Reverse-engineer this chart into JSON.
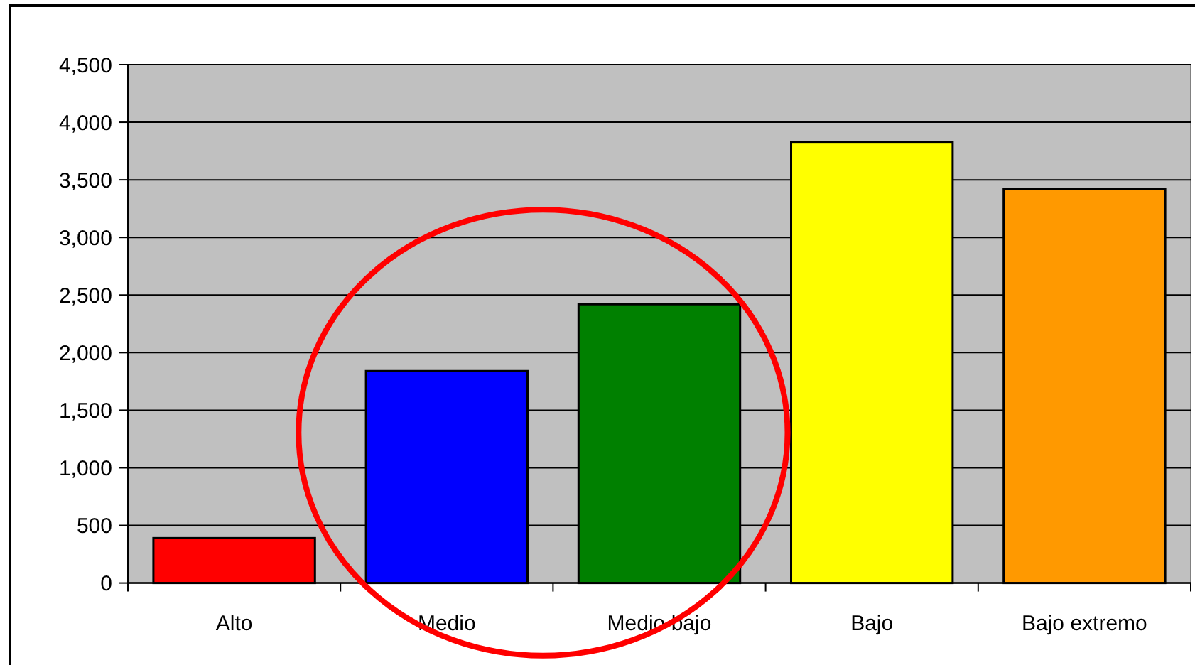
{
  "chart_data": {
    "type": "bar",
    "categories": [
      "Alto",
      "Medio",
      "Medio bajo",
      "Bajo",
      "Bajo extremo"
    ],
    "values": [
      390,
      1840,
      2420,
      3830,
      3420
    ],
    "colors": [
      "#ff0000",
      "#0000ff",
      "#008000",
      "#ffff00",
      "#ff9900"
    ],
    "ylim": [
      0,
      4500
    ],
    "yticks": [
      0,
      500,
      {
        "value": 1000,
        "label": "1,000"
      },
      {
        "value": 1500,
        "label": "1,500"
      },
      {
        "value": 2000,
        "label": "2,000"
      },
      {
        "value": 2500,
        "label": "2,500"
      },
      {
        "value": 3000,
        "label": "3,000"
      },
      {
        "value": 3500,
        "label": "3,500"
      },
      {
        "value": 4000,
        "label": "4,000"
      },
      {
        "value": 4500,
        "label": "4,500"
      }
    ],
    "grid": "y"
  }
}
